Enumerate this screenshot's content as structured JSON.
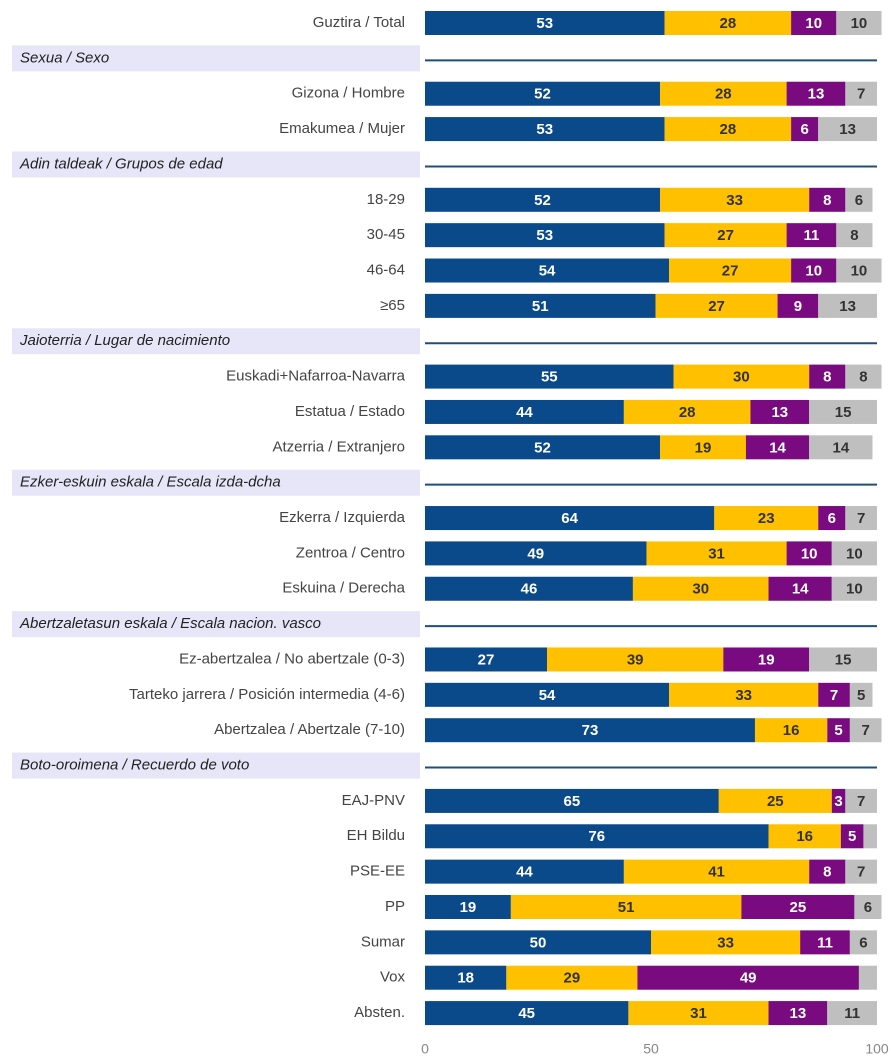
{
  "chart_data": {
    "type": "bar",
    "orientation": "horizontal",
    "stacked": true,
    "categories": [
      "Guztira / Total",
      "Sexua / Sexo",
      "Gizona / Hombre",
      "Emakumea / Mujer",
      "Adin taldeak / Grupos de edad",
      "18-29",
      "30-45",
      "46-64",
      "≥65",
      "Jaioterria / Lugar de nacimiento",
      "Euskadi+Nafarroa-Navarra",
      "Estatua / Estado",
      "Atzerria / Extranjero",
      "Ezker-eskuin eskala / Escala izda-dcha",
      "Ezkerra / Izquierda",
      "Zentroa / Centro",
      "Eskuina / Derecha",
      "Abertzaletasun eskala / Escala nacion. vasco",
      "Ez-abertzalea / No abertzale (0-3)",
      "Tarteko jarrera / Posición intermedia (4-6)",
      "Abertzalea / Abertzale (7-10)",
      "Boto-oroimena / Recuerdo de voto",
      "EAJ-PNV",
      "EH Bildu",
      "PSE-EE",
      "PP",
      "Sumar",
      "Vox",
      "Absten."
    ],
    "series": [
      {
        "color": "#0b4a8a",
        "values": [
          53,
          null,
          52,
          53,
          null,
          52,
          53,
          54,
          51,
          null,
          55,
          44,
          52,
          null,
          64,
          49,
          46,
          null,
          27,
          54,
          73,
          null,
          65,
          76,
          44,
          19,
          50,
          18,
          45
        ]
      },
      {
        "color": "#ffc000",
        "values": [
          28,
          null,
          28,
          28,
          null,
          33,
          27,
          27,
          27,
          null,
          30,
          28,
          19,
          null,
          23,
          31,
          30,
          null,
          39,
          33,
          16,
          null,
          25,
          16,
          41,
          51,
          33,
          29,
          31
        ]
      },
      {
        "color": "#7a0a80",
        "values": [
          10,
          null,
          13,
          6,
          null,
          8,
          11,
          10,
          9,
          null,
          8,
          13,
          14,
          null,
          6,
          10,
          14,
          null,
          19,
          7,
          5,
          null,
          3,
          5,
          8,
          25,
          11,
          49,
          13
        ]
      },
      {
        "color": "#bfbfbf",
        "values": [
          10,
          null,
          7,
          13,
          null,
          6,
          8,
          10,
          13,
          null,
          8,
          15,
          14,
          null,
          7,
          10,
          10,
          null,
          15,
          5,
          7,
          null,
          7,
          3,
          7,
          6,
          6,
          4,
          11
        ],
        "value_labels": [
          "10",
          null,
          "7",
          "13",
          null,
          "6",
          "8",
          "10",
          "13",
          null,
          "8",
          "15",
          "14",
          null,
          "7",
          "10",
          "10",
          null,
          "15",
          "5",
          "7",
          null,
          "7",
          null,
          "7",
          "6",
          "6",
          null,
          "11"
        ]
      }
    ],
    "xlim": [
      0,
      100
    ],
    "xticks": [
      0,
      50,
      100
    ]
  }
}
